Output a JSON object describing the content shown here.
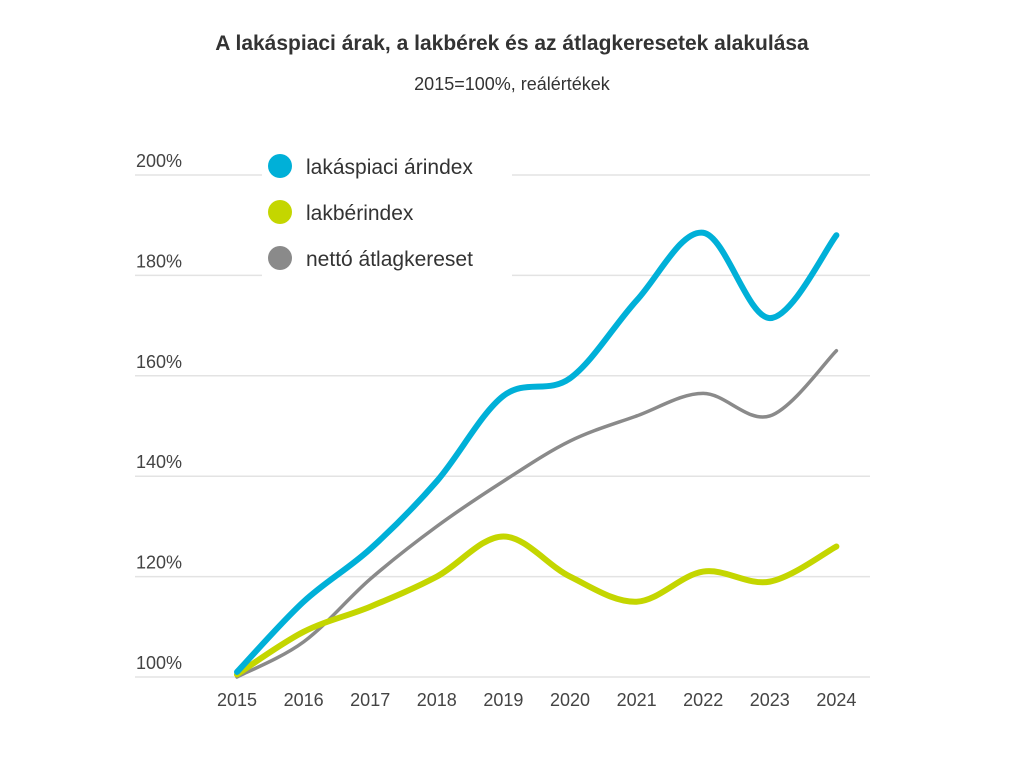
{
  "chart_data": {
    "type": "line",
    "title": "A lakáspiaci árak, a lakbérek és az átlagkeresetek alakulása",
    "subtitle": "2015=100%, reálértékek",
    "x": [
      "2015",
      "2016",
      "2017",
      "2018",
      "2019",
      "2020",
      "2021",
      "2022",
      "2023",
      "2024"
    ],
    "ylim": [
      100,
      200
    ],
    "yticks": [
      100,
      120,
      140,
      160,
      180,
      200
    ],
    "ytick_labels": [
      "100%",
      "120%",
      "140%",
      "160%",
      "180%",
      "200%"
    ],
    "grid": true,
    "legend_position": "top-left",
    "series": [
      {
        "name": "lakáspiaci árindex",
        "color": "#00b0d8",
        "values": [
          101,
          115,
          125.5,
          139,
          156,
          159.5,
          175,
          188.5,
          171.5,
          188
        ]
      },
      {
        "name": "lakbérindex",
        "color": "#c4d600",
        "values": [
          100.5,
          109,
          114,
          120,
          128,
          120,
          115,
          121,
          119,
          126
        ]
      },
      {
        "name": "nettó átlagkereset",
        "color": "#8a8a8a",
        "values": [
          100,
          107,
          119.5,
          130,
          139,
          147,
          152,
          156.5,
          152,
          165
        ]
      }
    ]
  }
}
